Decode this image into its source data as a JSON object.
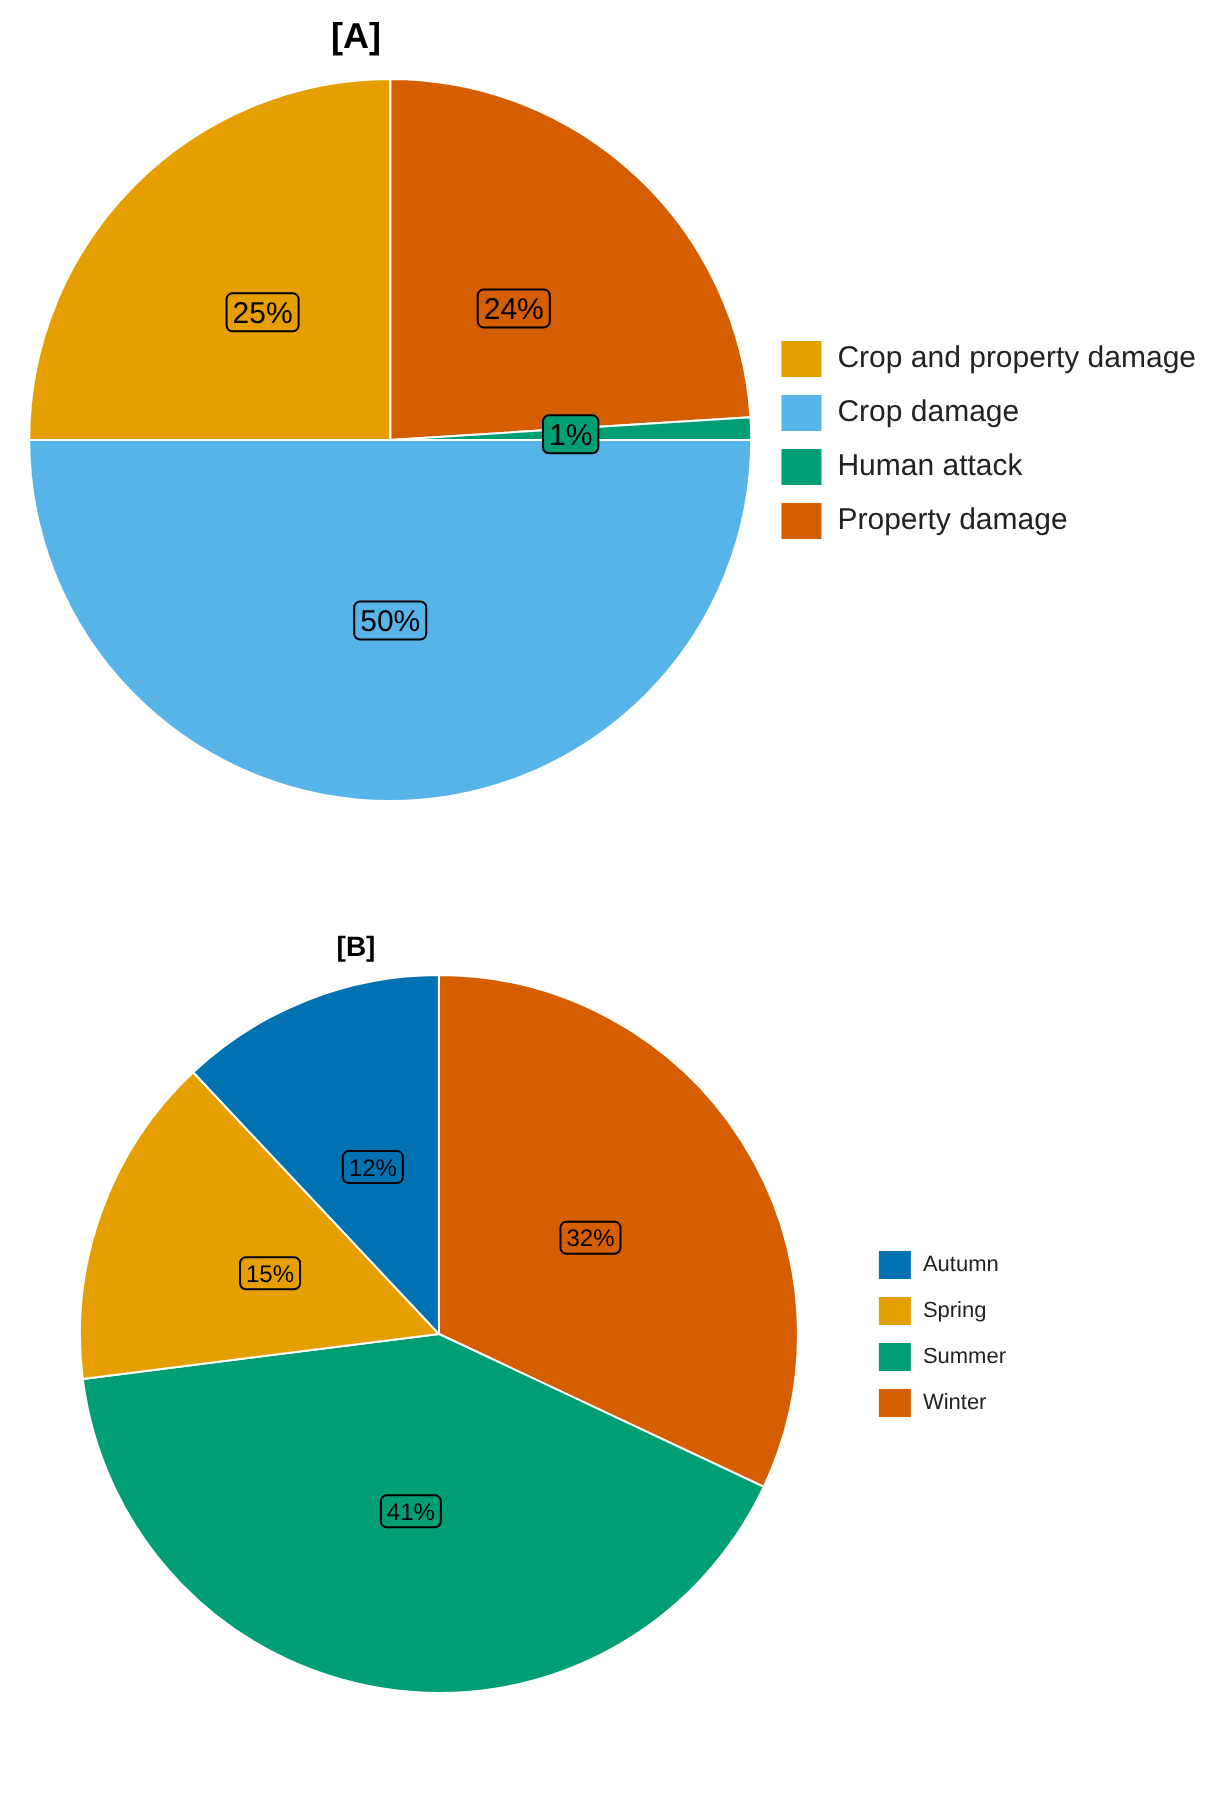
{
  "chart_data": [
    {
      "type": "pie",
      "title": "[A]",
      "categories": [
        "Crop and property damage",
        "Crop damage",
        "Human attack",
        "Property damage"
      ],
      "values": [
        25,
        50,
        1,
        24
      ],
      "colors": [
        "#e69f00",
        "#56b4e9",
        "#009e73",
        "#d55e00"
      ],
      "value_labels": [
        "25%",
        "50%",
        "1%",
        "24%"
      ],
      "legend": "right"
    },
    {
      "type": "pie",
      "title": "[B]",
      "categories": [
        "Autumn",
        "Spring",
        "Summer",
        "Winter"
      ],
      "values": [
        12,
        15,
        41,
        32
      ],
      "colors": [
        "#0072b2",
        "#e69f00",
        "#009e73",
        "#d55e00"
      ],
      "value_labels": [
        "12%",
        "15%",
        "41%",
        "32%"
      ],
      "legend": "right"
    }
  ]
}
